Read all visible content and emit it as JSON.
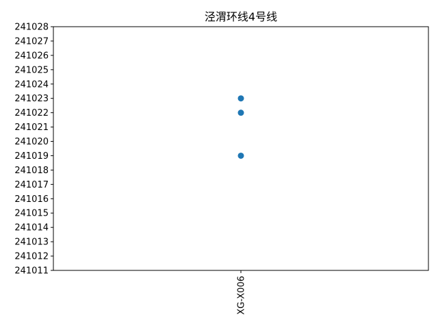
{
  "chart_data": {
    "type": "scatter",
    "title": "泾渭环线4号线",
    "xlabel": "",
    "ylabel": "",
    "categories": [
      "XG-X006"
    ],
    "points": [
      {
        "x": "XG-X006",
        "y": 241023
      },
      {
        "x": "XG-X006",
        "y": 241022
      },
      {
        "x": "XG-X006",
        "y": 241019
      }
    ],
    "ylim": [
      241011,
      241028
    ],
    "yticks": [
      "241011",
      "241012",
      "241013",
      "241014",
      "241015",
      "241016",
      "241017",
      "241018",
      "241019",
      "241020",
      "241021",
      "241022",
      "241023",
      "241024",
      "241025",
      "241026",
      "241027",
      "241028"
    ],
    "grid": false,
    "colors": {
      "marker": "#1f77b4",
      "axes": "#000000"
    }
  }
}
